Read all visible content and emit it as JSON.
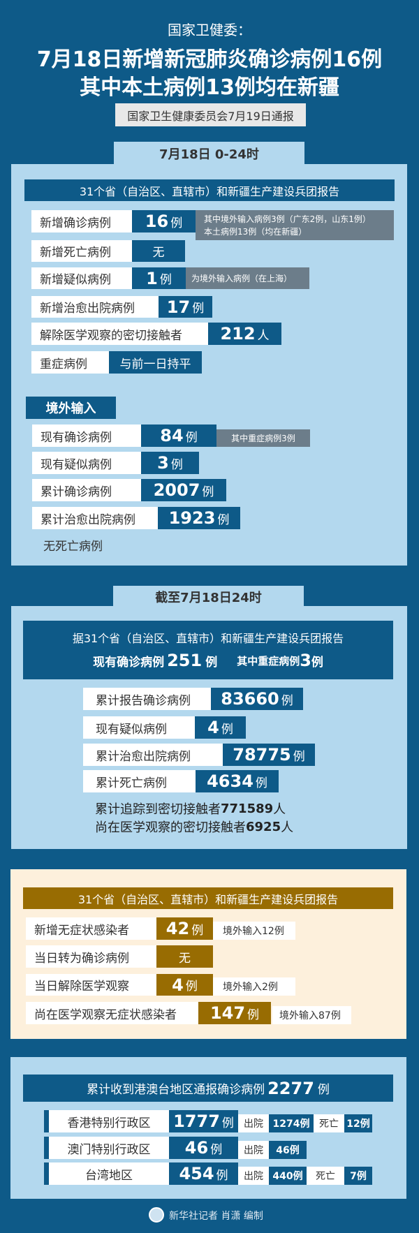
{
  "header": {
    "kicker": "国家卫健委：",
    "title_line1": "7月18日新增新冠肺炎确诊病例16例",
    "title_line2": "其中本土病例13例均在新疆",
    "source": "国家卫生健康委员会7月19日通报"
  },
  "daily": {
    "tab": "7月18日 0-24时",
    "bar": "31个省（自治区、直辖市）和新疆生产建设兵团报告",
    "rows": [
      {
        "label": "新增确诊病例",
        "value": "16",
        "unit": "例",
        "note1": "其中境外输入病例3例（广东2例，山东1例）",
        "note2": "本土病例13例（均在新疆）"
      },
      {
        "label": "新增死亡病例",
        "value": "无"
      },
      {
        "label": "新增疑似病例",
        "value": "1",
        "unit": "例",
        "note1": "为境外输入病例（在上海）"
      },
      {
        "label": "新增治愈出院病例",
        "value": "17",
        "unit": "例"
      },
      {
        "label": "解除医学观察的密切接触者",
        "value": "212",
        "unit": "人"
      },
      {
        "label": "重症病例",
        "value": "与前一日持平"
      }
    ],
    "imported": {
      "title": "境外输入",
      "rows": [
        {
          "label": "现有确诊病例",
          "value": "84",
          "unit": "例",
          "note": "其中重症病例3例"
        },
        {
          "label": "现有疑似病例",
          "value": "3",
          "unit": "例"
        },
        {
          "label": "累计确诊病例",
          "value": "2007",
          "unit": "例"
        },
        {
          "label": "累计治愈出院病例",
          "value": "1923",
          "unit": "例"
        }
      ],
      "no_death": "无死亡病例"
    }
  },
  "cumulative": {
    "tab": "截至7月18日24时",
    "line1": "据31个省（自治区、直辖市）和新疆生产建设兵团报告",
    "current_label": "现有确诊病例",
    "current_value": "251",
    "current_unit": "例",
    "severe_label": "其中重症病例",
    "severe_value": "3",
    "severe_unit": "例",
    "rows": [
      {
        "label": "累计报告确诊病例",
        "value": "83660",
        "unit": "例"
      },
      {
        "label": "现有疑似病例",
        "value": "4",
        "unit": "例"
      },
      {
        "label": "累计治愈出院病例",
        "value": "78775",
        "unit": "例"
      },
      {
        "label": "累计死亡病例",
        "value": "4634",
        "unit": "例"
      }
    ],
    "traced_label": "累计追踪到密切接触者",
    "traced_value": "771589",
    "traced_unit": "人",
    "observing_label": "尚在医学观察的密切接触者",
    "observing_value": "6925",
    "observing_unit": "人"
  },
  "asymptomatic": {
    "bar": "31个省（自治区、直辖市）和新疆生产建设兵团报告",
    "rows": [
      {
        "label": "新增无症状感染者",
        "value": "42",
        "unit": "例",
        "note": "境外输入12例"
      },
      {
        "label": "当日转为确诊病例",
        "value": "无"
      },
      {
        "label": "当日解除医学观察",
        "value": "4",
        "unit": "例",
        "note": "境外输入2例"
      },
      {
        "label": "尚在医学观察无症状感染者",
        "value": "147",
        "unit": "例",
        "note": "境外输入87例"
      }
    ]
  },
  "hmt": {
    "bar_label": "累计收到港澳台地区通报确诊病例",
    "bar_value": "2277",
    "bar_unit": "例",
    "discharged_label": "出院",
    "death_label": "死亡",
    "rows": [
      {
        "label": "香港特别行政区",
        "value": "1777",
        "unit": "例",
        "discharged": "1274例",
        "deaths": "12例"
      },
      {
        "label": "澳门特别行政区",
        "value": "46",
        "unit": "例",
        "discharged": "46例"
      },
      {
        "label": "台湾地区",
        "value": "454",
        "unit": "例",
        "discharged": "440例",
        "deaths": "7例"
      }
    ]
  },
  "footer": {
    "credit": "新华社记者 肖潇 编制"
  },
  "colors": {
    "background": "#0e5a88",
    "panel": "#b3d8ee",
    "gold": "#986c02",
    "note_grey": "#6c7d8a",
    "cream": "#fdf0dc"
  }
}
